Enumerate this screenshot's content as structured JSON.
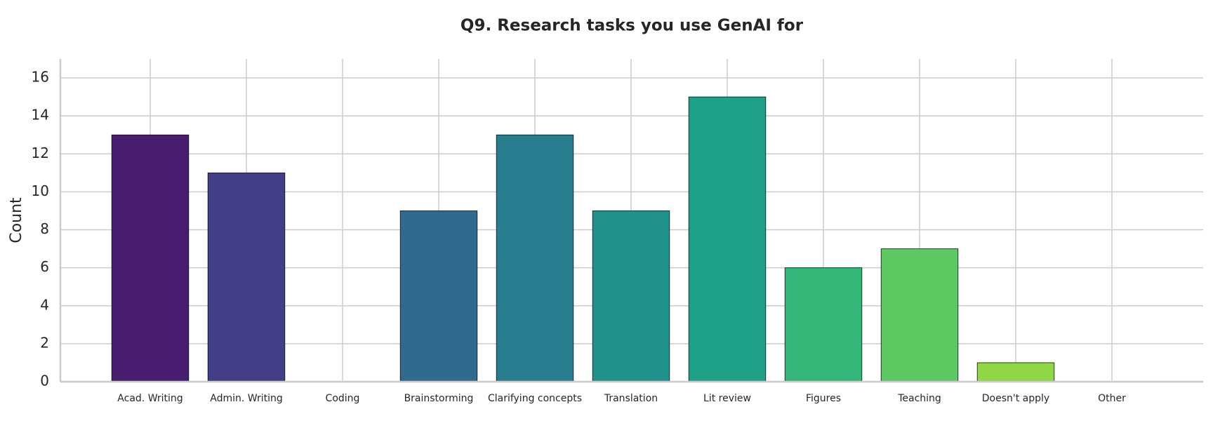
{
  "chart_data": {
    "type": "bar",
    "title": "Q9. Research tasks you use GenAI for",
    "y_label": "Count",
    "categories": [
      "Acad. Writing",
      "Admin. Writing",
      "Coding",
      "Brainstorming",
      "Clarifying concepts",
      "Translation",
      "Lit review",
      "Figures",
      "Teaching",
      "Doesn't apply",
      "Other"
    ],
    "values": [
      13,
      11,
      0,
      9,
      13,
      9,
      15,
      6,
      7,
      1,
      0
    ],
    "colors": [
      "#481c6e",
      "#433e85",
      "#38598c",
      "#306a8e",
      "#287d8e",
      "#21918c",
      "#1fa187",
      "#35b779",
      "#5ec962",
      "#8fd744",
      "#c8e020"
    ],
    "ylim": [
      0,
      17
    ],
    "yticks": [
      0,
      2,
      4,
      6,
      8,
      10,
      12,
      14,
      16
    ],
    "grid": true
  }
}
